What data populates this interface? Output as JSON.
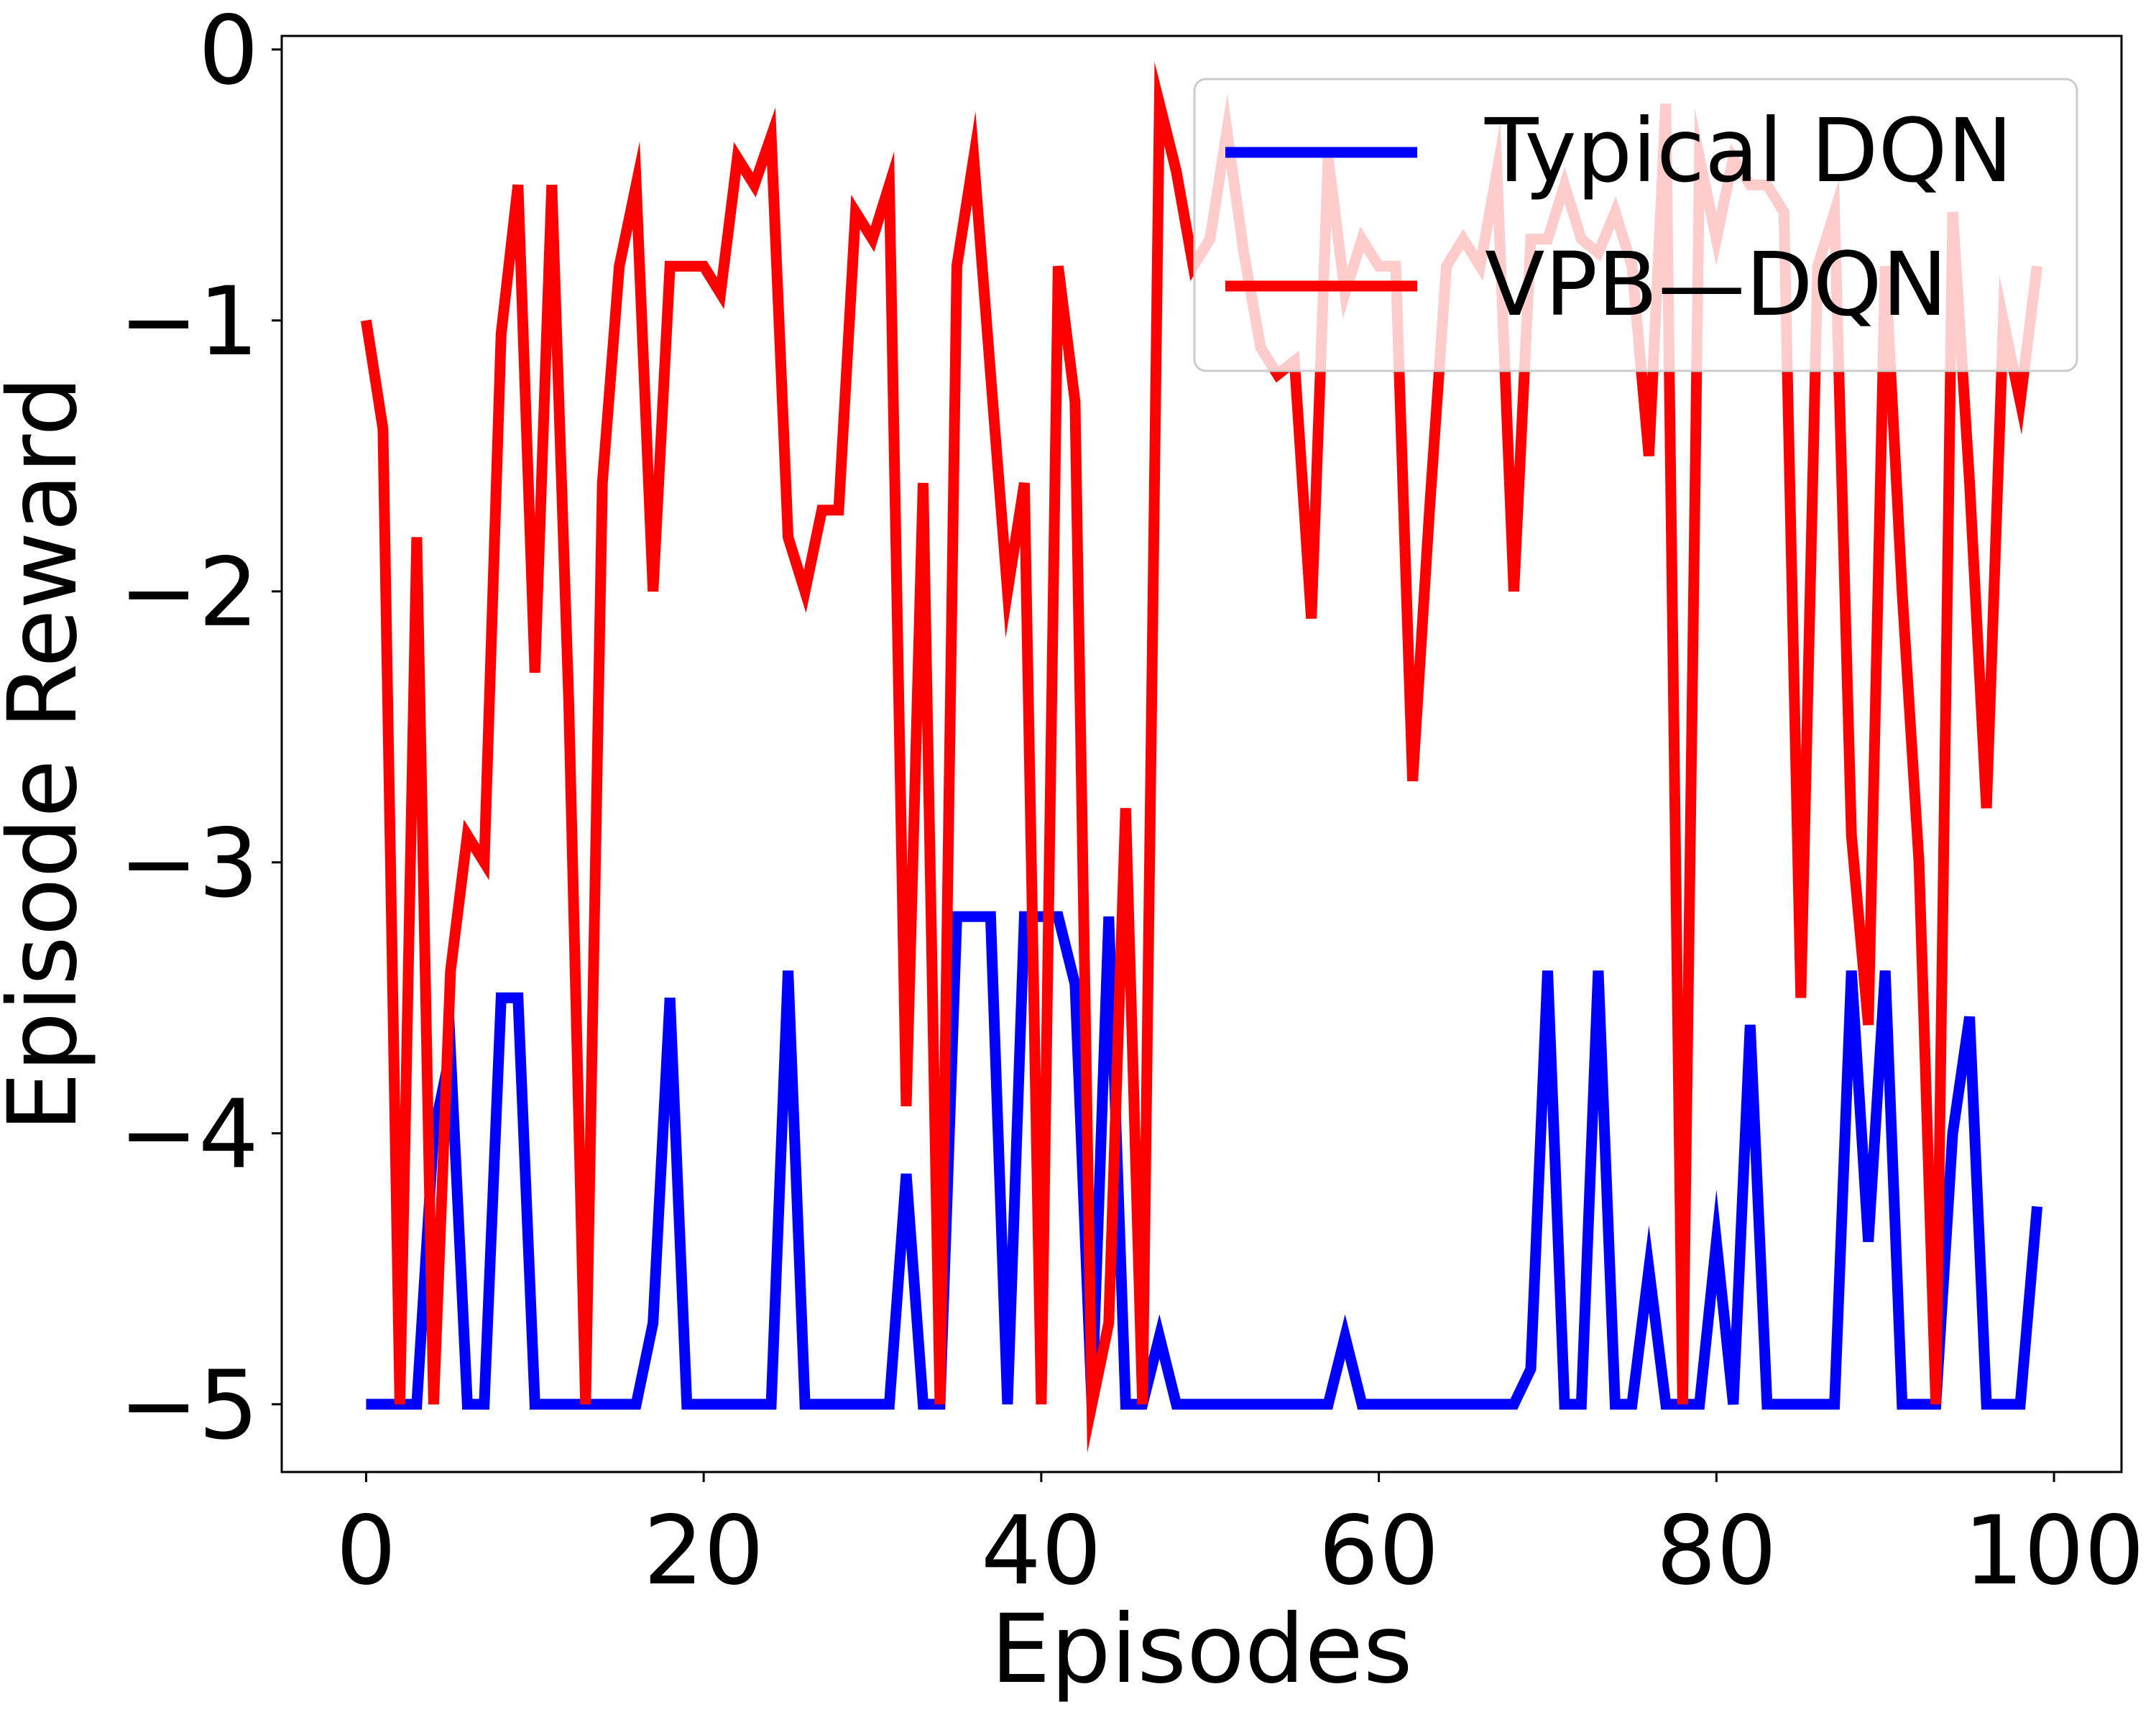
{
  "chart_data": {
    "type": "line",
    "xlabel": "Episodes",
    "ylabel": "Episode Reward",
    "xlim": [
      -5,
      104
    ],
    "ylim": [
      -5.25,
      0.05
    ],
    "xticks": [
      0,
      20,
      40,
      60,
      80,
      100
    ],
    "yticks": [
      0,
      -1,
      -2,
      -3,
      -4,
      -5
    ],
    "xtick_labels": [
      "0",
      "20",
      "40",
      "60",
      "80",
      "100"
    ],
    "ytick_labels": [
      "0",
      "−1",
      "−2",
      "−3",
      "−4",
      "−5"
    ],
    "grid": false,
    "legend_position": "top-right",
    "x": [
      0,
      1,
      2,
      3,
      4,
      5,
      6,
      7,
      8,
      9,
      10,
      11,
      12,
      13,
      14,
      15,
      16,
      17,
      18,
      19,
      20,
      21,
      22,
      23,
      24,
      25,
      26,
      27,
      28,
      29,
      30,
      31,
      32,
      33,
      34,
      35,
      36,
      37,
      38,
      39,
      40,
      41,
      42,
      43,
      44,
      45,
      46,
      47,
      48,
      49,
      50,
      51,
      52,
      53,
      54,
      55,
      56,
      57,
      58,
      59,
      60,
      61,
      62,
      63,
      64,
      65,
      66,
      67,
      68,
      69,
      70,
      71,
      72,
      73,
      74,
      75,
      76,
      77,
      78,
      79,
      80,
      81,
      82,
      83,
      84,
      85,
      86,
      87,
      88,
      89,
      90,
      91,
      92,
      93,
      94,
      95,
      96,
      97,
      98,
      99
    ],
    "series": [
      {
        "name": "Typical DQN",
        "color": "#0000ff",
        "values": [
          -5,
          -5,
          -5,
          -5,
          -4,
          -3.7,
          -5,
          -5,
          -3.5,
          -3.5,
          -5,
          -5,
          -5,
          -5,
          -5,
          -5,
          -5,
          -4.7,
          -3.5,
          -5,
          -5,
          -5,
          -5,
          -5,
          -5,
          -3.4,
          -5,
          -5,
          -5,
          -5,
          -5,
          -5,
          -4.15,
          -5,
          -5,
          -3.2,
          -3.2,
          -3.2,
          -5,
          -3.2,
          -3.2,
          -3.2,
          -3.45,
          -5,
          -3.2,
          -5,
          -5,
          -4.75,
          -5,
          -5,
          -5,
          -5,
          -5,
          -5,
          -5,
          -5,
          -5,
          -5,
          -4.75,
          -5,
          -5,
          -5,
          -5,
          -5,
          -5,
          -5,
          -5,
          -5,
          -5,
          -4.87,
          -3.4,
          -5,
          -5,
          -3.4,
          -5,
          -5,
          -4.5,
          -5,
          -5,
          -5,
          -4.4,
          -5,
          -3.6,
          -5,
          -5,
          -5,
          -5,
          -5,
          -3.4,
          -4.4,
          -3.4,
          -5,
          -5,
          -5,
          -4,
          -3.57,
          -5,
          -5,
          -5,
          -4.27
        ]
      },
      {
        "name": "VPB—DQN",
        "color": "#ff0000",
        "values": [
          -1,
          -1.4,
          -5,
          -1.8,
          -5,
          -3.4,
          -2.9,
          -3,
          -1.05,
          -0.5,
          -2.3,
          -0.5,
          -2.4,
          -5,
          -1.6,
          -0.8,
          -0.5,
          -2,
          -0.8,
          -0.8,
          -0.8,
          -0.9,
          -0.4,
          -0.5,
          -0.32,
          -1.8,
          -2,
          -1.7,
          -1.7,
          -0.6,
          -0.7,
          -0.5,
          -3.9,
          -1.6,
          -5,
          -0.8,
          -0.4,
          -1.2,
          -2,
          -1.6,
          -5,
          -0.8,
          -1.3,
          -5,
          -4.7,
          -2.8,
          -5,
          -0.2,
          -0.45,
          -0.8,
          -0.7,
          -0.3,
          -0.75,
          -1.1,
          -1.2,
          -1.15,
          -2.1,
          -0.4,
          -0.9,
          -0.7,
          -0.8,
          -0.8,
          -2.7,
          -1.7,
          -0.8,
          -0.7,
          -0.8,
          -0.45,
          -2,
          -0.7,
          -0.7,
          -0.5,
          -0.7,
          -0.75,
          -0.6,
          -0.8,
          -1.5,
          -0.2,
          -5,
          -0.4,
          -0.7,
          -0.4,
          -0.5,
          -0.5,
          -0.6,
          -3.5,
          -0.8,
          -0.6,
          -2.9,
          -3.6,
          -0.8,
          -2,
          -3,
          -5,
          -0.6,
          -1.6,
          -2.8,
          -1,
          -1.3,
          -0.8
        ]
      }
    ]
  }
}
